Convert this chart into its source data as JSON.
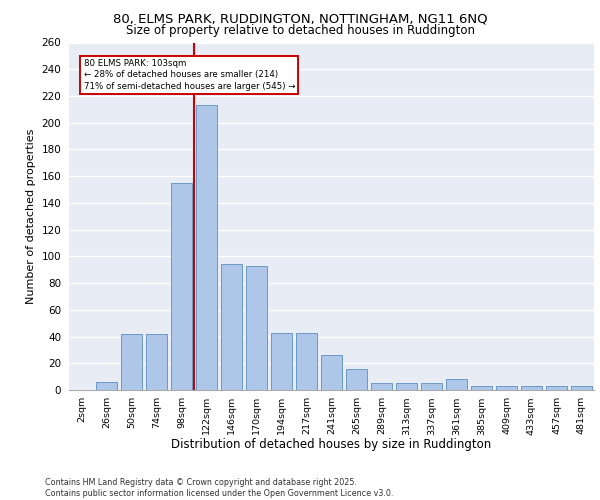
{
  "title_line1": "80, ELMS PARK, RUDDINGTON, NOTTINGHAM, NG11 6NQ",
  "title_line2": "Size of property relative to detached houses in Ruddington",
  "xlabel": "Distribution of detached houses by size in Ruddington",
  "ylabel": "Number of detached properties",
  "footer_line1": "Contains HM Land Registry data © Crown copyright and database right 2025.",
  "footer_line2": "Contains public sector information licensed under the Open Government Licence v3.0.",
  "annotation_title": "80 ELMS PARK: 103sqm",
  "annotation_line2": "← 28% of detached houses are smaller (214)",
  "annotation_line3": "71% of semi-detached houses are larger (545) →",
  "bar_labels": [
    "2sqm",
    "26sqm",
    "50sqm",
    "74sqm",
    "98sqm",
    "122sqm",
    "146sqm",
    "170sqm",
    "194sqm",
    "217sqm",
    "241sqm",
    "265sqm",
    "289sqm",
    "313sqm",
    "337sqm",
    "361sqm",
    "385sqm",
    "409sqm",
    "433sqm",
    "457sqm",
    "481sqm"
  ],
  "bar_values": [
    0,
    6,
    42,
    42,
    155,
    213,
    94,
    93,
    43,
    43,
    26,
    16,
    5,
    5,
    5,
    8,
    3,
    3,
    3,
    3,
    3
  ],
  "bar_color": "#aec6e8",
  "bar_edge_color": "#5a8fc0",
  "background_color": "#e8edf5",
  "grid_color": "#ffffff",
  "vline_color": "#cc0000",
  "ylim_max": 260,
  "yticks": [
    0,
    20,
    40,
    60,
    80,
    100,
    120,
    140,
    160,
    180,
    200,
    220,
    240,
    260
  ],
  "annotation_box_color": "#ffffff",
  "annotation_box_edge": "#cc0000",
  "fig_width": 6.0,
  "fig_height": 5.0,
  "fig_dpi": 100
}
